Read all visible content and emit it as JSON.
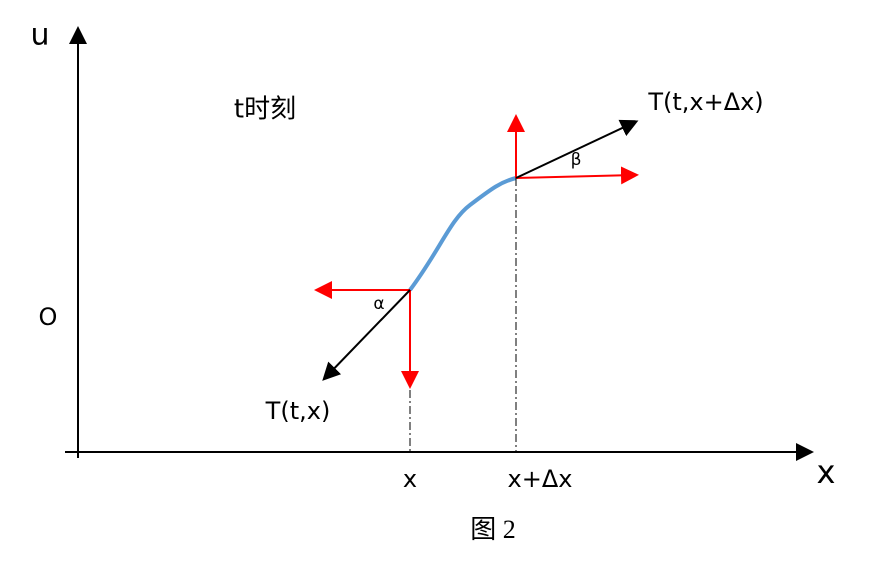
{
  "labels": {
    "u_axis": "u",
    "time": "t时刻",
    "origin": "O",
    "tension_right": "T(t,x+Δx)",
    "beta": "β",
    "alpha": "α",
    "tension_left": "T(t,x)",
    "x_point": "x",
    "x_dx_point": "x+Δx",
    "x_axis": "x"
  },
  "caption": "图 2"
}
